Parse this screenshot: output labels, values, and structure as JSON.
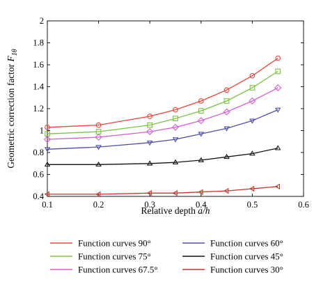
{
  "chart_data": {
    "type": "line",
    "xlabel": "Relative depth a/h",
    "xlabel_parts": {
      "prefix": "Relative depth ",
      "var": "a/h"
    },
    "ylabel": "Geometric correction factor Fθ",
    "ylabel_parts": {
      "prefix": "Geometric correction factor ",
      "var": "F",
      "sub": "1θ"
    },
    "xlim": [
      0.1,
      0.6
    ],
    "ylim": [
      0.4,
      2.0
    ],
    "xticks": [
      "0.1",
      "0.2",
      "0.3",
      "0.4",
      "0.5",
      "0.6"
    ],
    "yticks": [
      "0.4",
      "0.6",
      "0.8",
      "1",
      "1.2",
      "1.4",
      "1.6",
      "1.8",
      "2"
    ],
    "grid": false,
    "legend_position": "bottom",
    "series": [
      {
        "name": "Function curves 90°",
        "color": "#e8463a",
        "marker": "circle",
        "x": [
          0.1,
          0.2,
          0.3,
          0.35,
          0.4,
          0.45,
          0.5,
          0.55
        ],
        "y": [
          1.03,
          1.05,
          1.13,
          1.19,
          1.27,
          1.37,
          1.5,
          1.66
        ]
      },
      {
        "name": "Function curves 75°",
        "color": "#7cc242",
        "marker": "square",
        "x": [
          0.1,
          0.2,
          0.3,
          0.35,
          0.4,
          0.45,
          0.5,
          0.55
        ],
        "y": [
          0.97,
          0.99,
          1.05,
          1.11,
          1.18,
          1.27,
          1.39,
          1.54
        ]
      },
      {
        "name": "Function curves 67.5°",
        "color": "#d65ccf",
        "marker": "diamond",
        "x": [
          0.1,
          0.2,
          0.3,
          0.35,
          0.4,
          0.45,
          0.5,
          0.55
        ],
        "y": [
          0.92,
          0.94,
          0.99,
          1.03,
          1.09,
          1.17,
          1.27,
          1.39
        ]
      },
      {
        "name": "Function curves 60°",
        "color": "#4f4fa8",
        "marker": "triangle-down",
        "x": [
          0.1,
          0.2,
          0.3,
          0.35,
          0.4,
          0.45,
          0.5,
          0.55
        ],
        "y": [
          0.83,
          0.85,
          0.89,
          0.92,
          0.97,
          1.02,
          1.09,
          1.19
        ]
      },
      {
        "name": "Function curves 45°",
        "color": "#111111",
        "marker": "triangle-up",
        "x": [
          0.1,
          0.2,
          0.3,
          0.35,
          0.4,
          0.45,
          0.5,
          0.55
        ],
        "y": [
          0.69,
          0.69,
          0.7,
          0.71,
          0.73,
          0.76,
          0.79,
          0.84
        ]
      },
      {
        "name": "Function curves 30°",
        "color": "#c0392b",
        "marker": "triangle-left",
        "x": [
          0.1,
          0.2,
          0.3,
          0.35,
          0.4,
          0.45,
          0.5,
          0.55
        ],
        "y": [
          0.42,
          0.42,
          0.43,
          0.43,
          0.44,
          0.45,
          0.47,
          0.49
        ]
      }
    ]
  }
}
